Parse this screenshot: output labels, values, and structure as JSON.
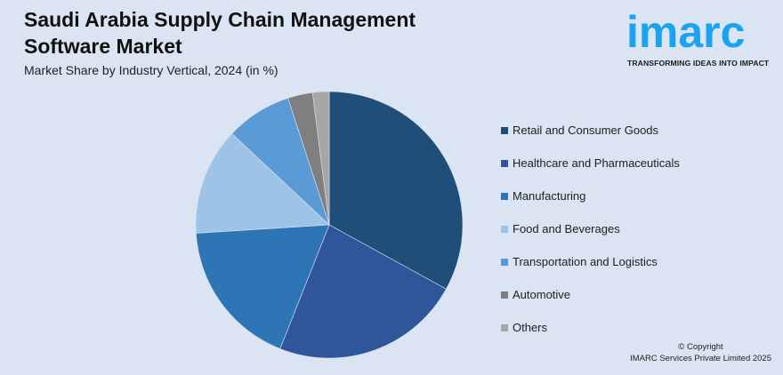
{
  "header": {
    "title": "Saudi Arabia Supply Chain Management Software Market",
    "subtitle": "Market Share by Industry Vertical, 2024 (in %)"
  },
  "logo": {
    "wordmark": "imarc",
    "tagline": "TRANSFORMING IDEAS INTO IMPACT",
    "color": "#1aa3f0"
  },
  "chart_data": {
    "type": "pie",
    "title": "Saudi Arabia Supply Chain Management Software Market",
    "subtitle": "Market Share by Industry Vertical, 2024 (in %)",
    "legend_position": "right",
    "categories": [
      "Retail and Consumer Goods",
      "Healthcare and Pharmaceuticals",
      "Manufacturing",
      "Food and Beverages",
      "Transportation and Logistics",
      "Automotive",
      "Others"
    ],
    "values": [
      33,
      23,
      18,
      13,
      8,
      3,
      2
    ],
    "colors": [
      "#1f4e79",
      "#2f559b",
      "#2e75b6",
      "#9dc3e6",
      "#5b9bd5",
      "#7f7f7f",
      "#a6a6a6"
    ],
    "unit": "%"
  },
  "footer": {
    "copyright_line1": "© Copyright",
    "copyright_line2": "IMARC Services Private Limited 2025"
  }
}
